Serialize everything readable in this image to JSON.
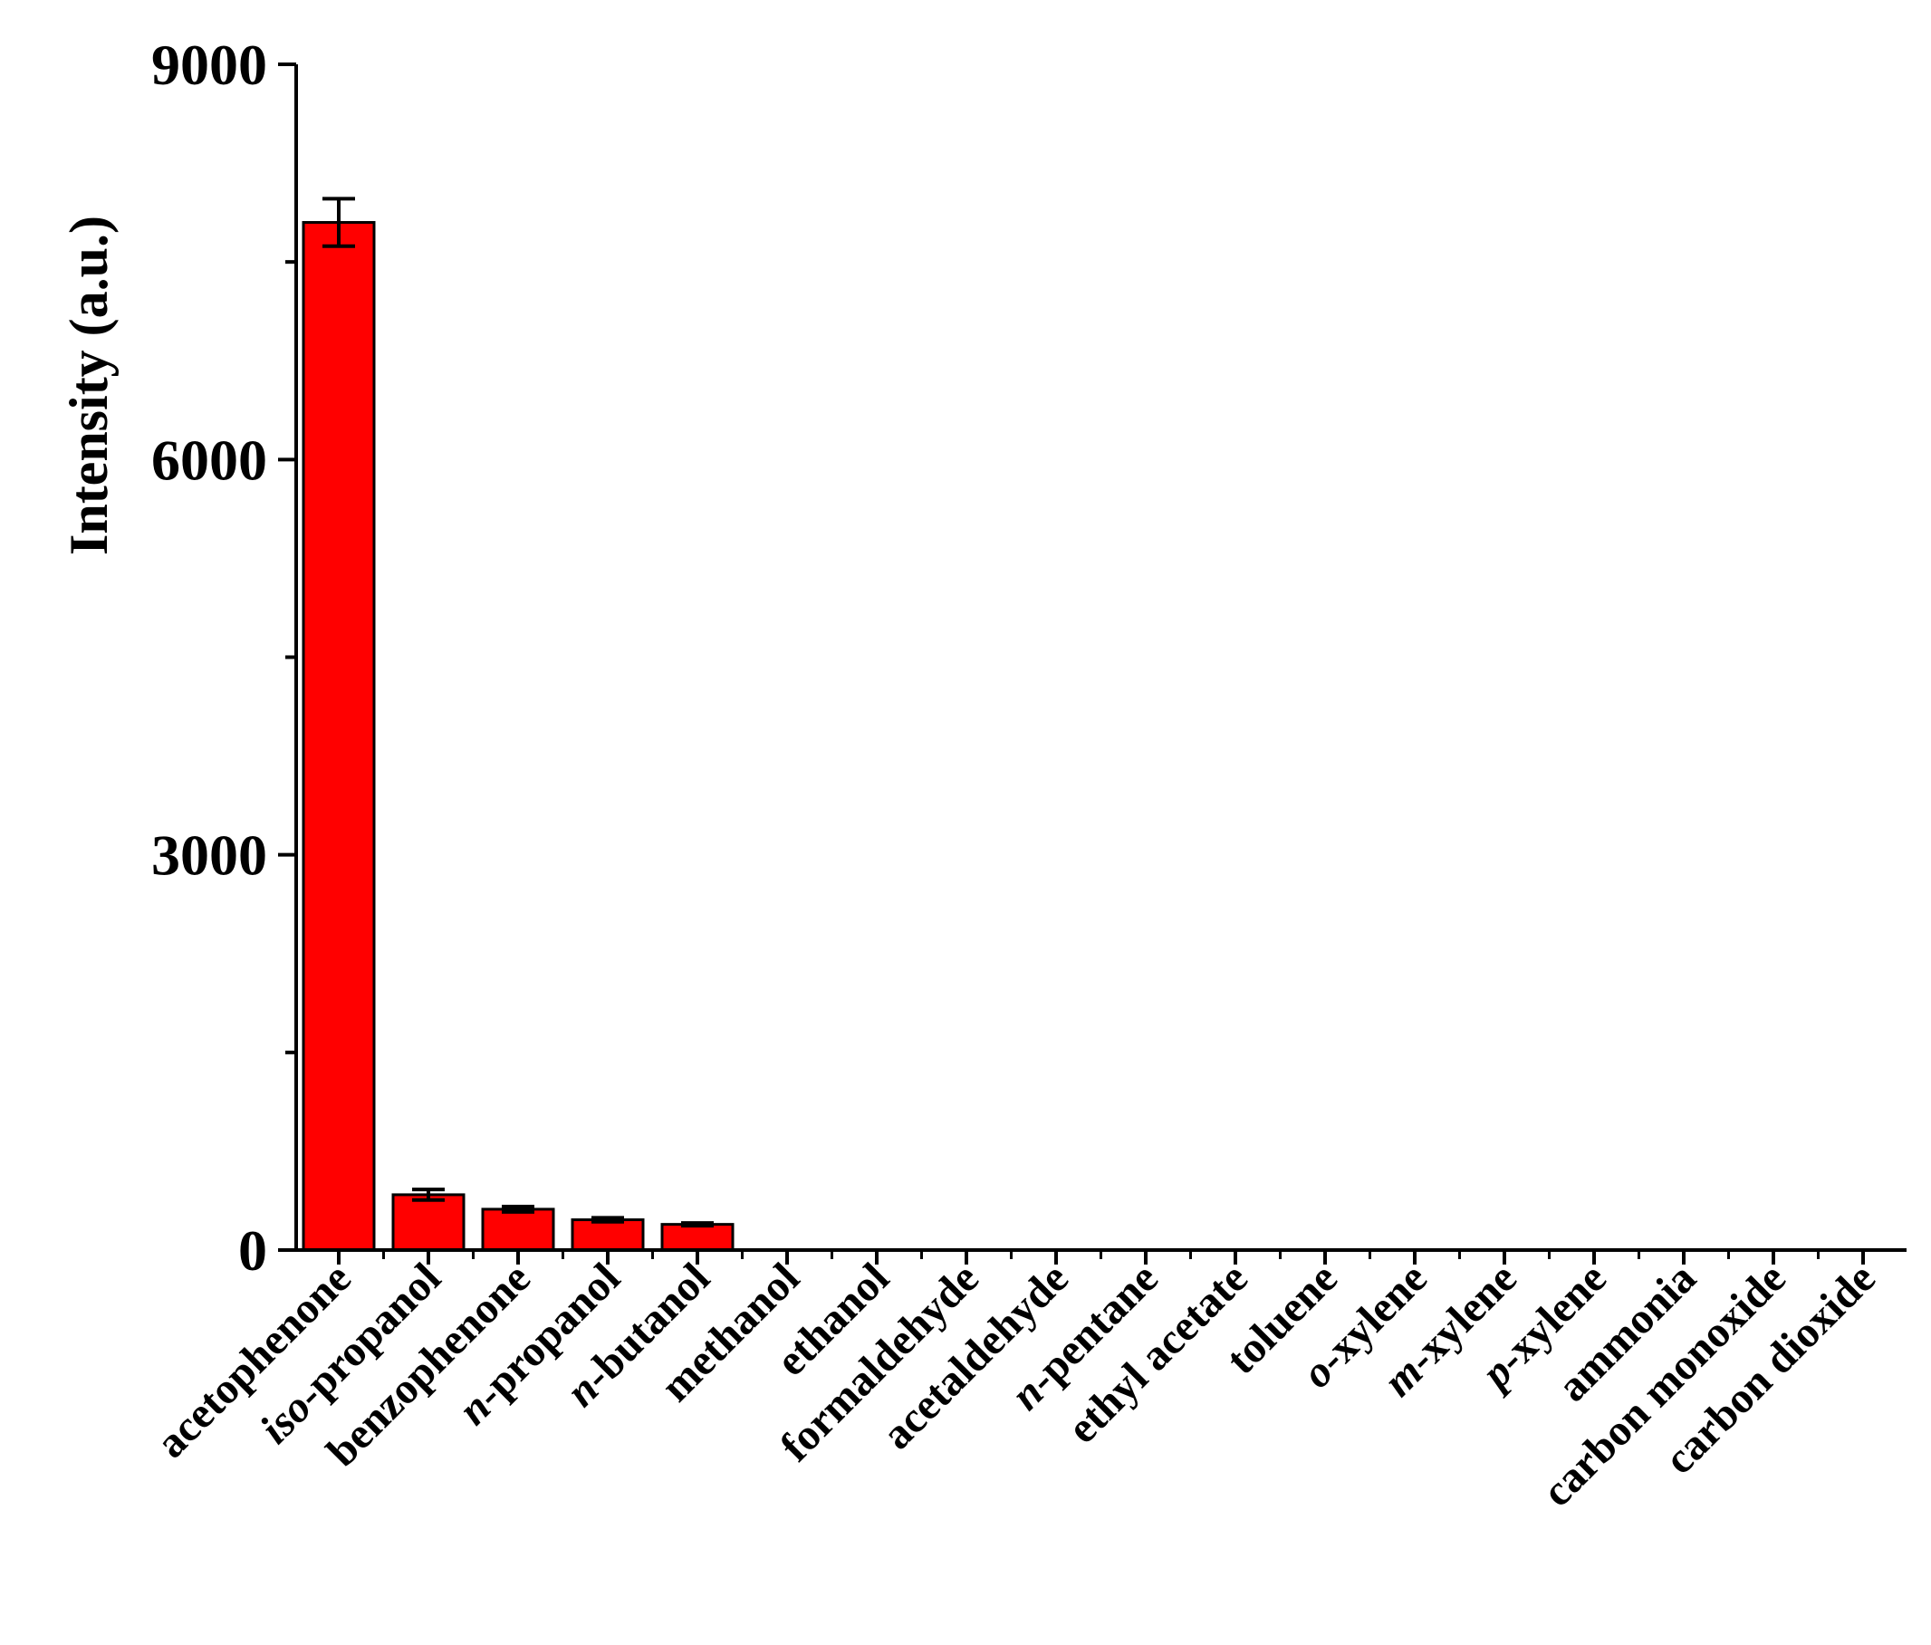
{
  "chart_data": {
    "type": "bar",
    "ylabel": "Intensity (a.u.)",
    "xlabel": "",
    "ylim": [
      0,
      9000
    ],
    "yticks_labeled": [
      0,
      3000,
      6000,
      9000
    ],
    "yticks_minor": [
      1500,
      4500,
      7500
    ],
    "grid": false,
    "legend": "none",
    "bar_color": "#ff0000",
    "bar_edge_color": "#000000",
    "categories": [
      [
        {
          "t": "acetophenone",
          "i": false
        }
      ],
      [
        {
          "t": "iso",
          "i": true
        },
        {
          "t": "-propanol",
          "i": false
        }
      ],
      [
        {
          "t": "benzophenone",
          "i": false
        }
      ],
      [
        {
          "t": "n",
          "i": true
        },
        {
          "t": "-propanol",
          "i": false
        }
      ],
      [
        {
          "t": "n",
          "i": true
        },
        {
          "t": "-butanol",
          "i": false
        }
      ],
      [
        {
          "t": "methanol",
          "i": false
        }
      ],
      [
        {
          "t": "ethanol",
          "i": false
        }
      ],
      [
        {
          "t": "formaldehyde",
          "i": false
        }
      ],
      [
        {
          "t": "acetaldehyde",
          "i": false
        }
      ],
      [
        {
          "t": "n",
          "i": true
        },
        {
          "t": "-pentane",
          "i": false
        }
      ],
      [
        {
          "t": "ethyl acetate",
          "i": false
        }
      ],
      [
        {
          "t": "toluene",
          "i": false
        }
      ],
      [
        {
          "t": "o",
          "i": true
        },
        {
          "t": "-xylene",
          "i": false
        }
      ],
      [
        {
          "t": "m",
          "i": true
        },
        {
          "t": "-xylene",
          "i": false
        }
      ],
      [
        {
          "t": "p",
          "i": true
        },
        {
          "t": "-xylene",
          "i": false
        }
      ],
      [
        {
          "t": "ammonia",
          "i": false
        }
      ],
      [
        {
          "t": "carbon monoxide",
          "i": false
        }
      ],
      [
        {
          "t": "carbon dioxide",
          "i": false
        }
      ]
    ],
    "values": [
      7800,
      420,
      310,
      230,
      195,
      0,
      0,
      0,
      0,
      0,
      0,
      0,
      0,
      0,
      0,
      0,
      0,
      0
    ],
    "errors": [
      180,
      40,
      20,
      15,
      10,
      0,
      0,
      0,
      0,
      0,
      0,
      0,
      0,
      0,
      0,
      0,
      0,
      0
    ]
  }
}
